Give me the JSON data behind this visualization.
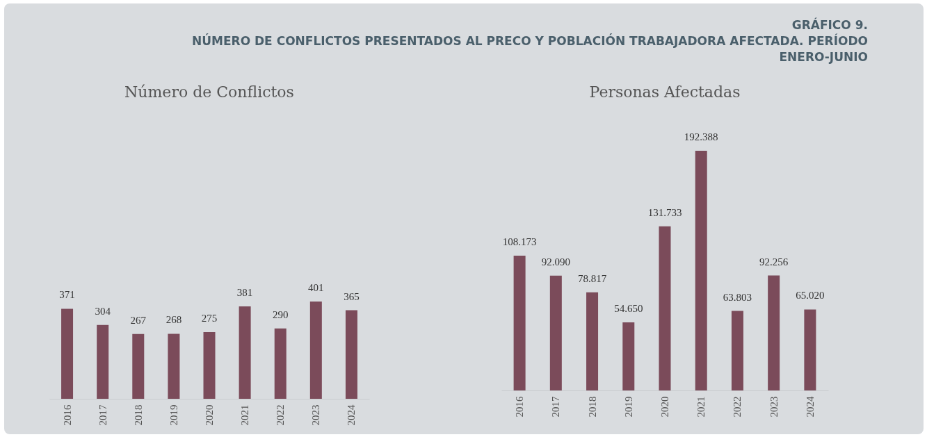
{
  "chart_data": [
    {
      "type": "other",
      "title": "GRÁFICO 9.",
      "subtitle": "NÚMERO DE CONFLICTOS PRESENTADOS AL PRECO Y POBLACIÓN TRABAJADORA AFECTADA. PERÍODO ENERO-JUNIO"
    },
    {
      "type": "bar",
      "title": "Número de Conflictos",
      "categories": [
        "2016",
        "2017",
        "2018",
        "2019",
        "2020",
        "2021",
        "2022",
        "2023",
        "2024"
      ],
      "values": [
        371,
        304,
        267,
        268,
        275,
        381,
        290,
        401,
        365
      ],
      "color": "#7b4b5a",
      "data_labels": true
    },
    {
      "type": "bar",
      "title": "Personas Afectadas",
      "categories": [
        "2016",
        "2017",
        "2018",
        "2019",
        "2020",
        "2021",
        "2022",
        "2023",
        "2024"
      ],
      "values": [
        108173,
        92090,
        78817,
        54650,
        131733,
        192388,
        63803,
        92256,
        65020
      ],
      "value_labels": [
        "108.173",
        "92.090",
        "78.817",
        "54.650",
        "131.733",
        "192.388",
        "63.803",
        "92.256",
        "65.020"
      ],
      "color": "#7b4b5a"
    }
  ]
}
